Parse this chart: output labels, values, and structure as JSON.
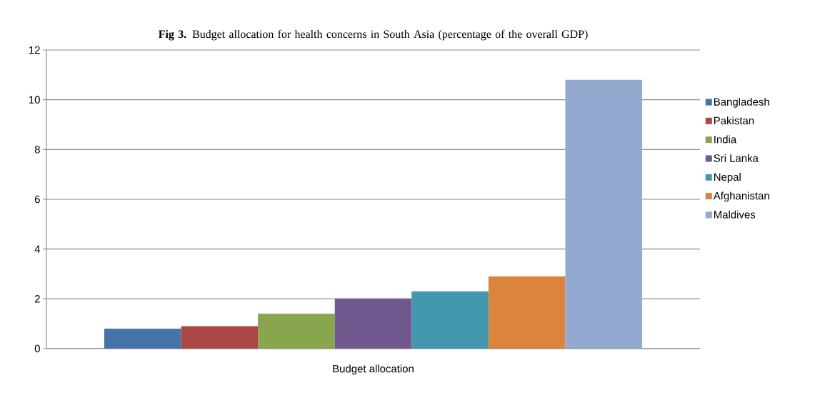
{
  "chart_data": {
    "type": "bar",
    "title": "**Fig 3.** Budget allocation for health concerns in South Asia (percentage of the overall GDP)",
    "categories": [
      "Budget allocation"
    ],
    "series": [
      {
        "name": "Bangladesh",
        "color": "#4572a7",
        "values": [
          0.8
        ]
      },
      {
        "name": "Pakistan",
        "color": "#aa4643",
        "values": [
          0.9
        ]
      },
      {
        "name": "India",
        "color": "#89a54e",
        "values": [
          1.4
        ]
      },
      {
        "name": "Sri Lanka",
        "color": "#71588f",
        "values": [
          2.0
        ]
      },
      {
        "name": "Nepal",
        "color": "#4198af",
        "values": [
          2.3
        ]
      },
      {
        "name": "Afghanistan",
        "color": "#db843d",
        "values": [
          2.9
        ]
      },
      {
        "name": "Maldives",
        "color": "#93a9cf",
        "values": [
          10.8
        ]
      }
    ],
    "ylim": [
      0,
      12
    ],
    "yticks": [
      0,
      2,
      4,
      6,
      8,
      10,
      12
    ],
    "grid": "y",
    "legend": "right"
  }
}
